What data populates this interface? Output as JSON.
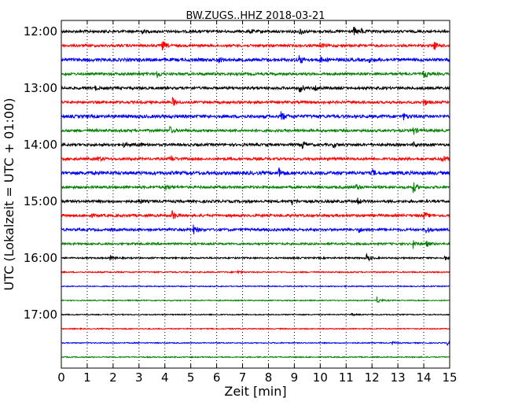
{
  "chart_data": {
    "type": "line",
    "title": "BW.ZUGS..HHZ 2018-03-21",
    "xlabel": "Zeit  [min]",
    "ylabel": "UTC (Lokalzeit = UTC + 01:00)",
    "xlim": [
      0,
      15
    ],
    "x_ticks": [
      "0",
      "1",
      "2",
      "3",
      "4",
      "5",
      "6",
      "7",
      "8",
      "9",
      "10",
      "11",
      "12",
      "13",
      "14",
      "15"
    ],
    "y_tick_labels": [
      "12:00",
      "13:00",
      "14:00",
      "15:00",
      "16:00",
      "17:00"
    ],
    "grid": "vertical dotted lines at each minute",
    "colors": [
      "#000000",
      "#ff0000",
      "#0000ff",
      "#008000"
    ],
    "series": [
      {
        "start": "12:00",
        "color": "#000000",
        "amplitude": 1.0,
        "events": [
          [
            3.1,
            0.7
          ],
          [
            7.3,
            0.6
          ],
          [
            9.2,
            1.6
          ],
          [
            11.3,
            1.5
          ],
          [
            11.6,
            0.7
          ]
        ]
      },
      {
        "start": "12:15",
        "color": "#ff0000",
        "amplitude": 1.0,
        "events": [
          [
            3.9,
            1.8
          ],
          [
            10.0,
            1.0
          ],
          [
            14.4,
            1.3
          ]
        ]
      },
      {
        "start": "12:30",
        "color": "#0000ff",
        "amplitude": 1.2,
        "events": [
          [
            6.1,
            0.8
          ],
          [
            9.2,
            1.6
          ],
          [
            10.0,
            1.0
          ],
          [
            11.9,
            0.7
          ]
        ]
      },
      {
        "start": "12:45",
        "color": "#008000",
        "amplitude": 1.0,
        "events": [
          [
            3.7,
            1.2
          ],
          [
            14.0,
            1.5
          ]
        ]
      },
      {
        "start": "13:00",
        "color": "#000000",
        "amplitude": 1.0,
        "events": [
          [
            1.3,
            0.7
          ],
          [
            9.2,
            1.5
          ],
          [
            9.8,
            1.3
          ]
        ]
      },
      {
        "start": "13:15",
        "color": "#ff0000",
        "amplitude": 1.0,
        "events": [
          [
            4.3,
            1.6
          ],
          [
            14.0,
            1.3
          ]
        ]
      },
      {
        "start": "13:30",
        "color": "#0000ff",
        "amplitude": 1.2,
        "events": [
          [
            8.5,
            1.8
          ],
          [
            13.2,
            1.2
          ]
        ]
      },
      {
        "start": "13:45",
        "color": "#008000",
        "amplitude": 1.0,
        "events": [
          [
            4.2,
            1.2
          ],
          [
            13.6,
            1.4
          ]
        ]
      },
      {
        "start": "14:00",
        "color": "#000000",
        "amplitude": 1.0,
        "events": [
          [
            2.4,
            0.7
          ],
          [
            3.0,
            0.7
          ],
          [
            9.3,
            1.6
          ],
          [
            10.5,
            0.8
          ],
          [
            13.6,
            0.8
          ]
        ]
      },
      {
        "start": "14:15",
        "color": "#ff0000",
        "amplitude": 1.0,
        "events": [
          [
            1.4,
            0.8
          ],
          [
            4.2,
            1.5
          ],
          [
            14.7,
            1.6
          ]
        ]
      },
      {
        "start": "14:30",
        "color": "#0000ff",
        "amplitude": 1.3,
        "events": [
          [
            8.4,
            1.8
          ],
          [
            12.0,
            1.1
          ]
        ]
      },
      {
        "start": "14:45",
        "color": "#008000",
        "amplitude": 1.0,
        "events": [
          [
            4.0,
            1.3
          ],
          [
            11.4,
            1.0
          ],
          [
            13.6,
            1.8
          ]
        ]
      },
      {
        "start": "15:00",
        "color": "#000000",
        "amplitude": 1.0,
        "events": [
          [
            3.0,
            0.8
          ],
          [
            8.9,
            1.1
          ],
          [
            11.4,
            1.5
          ]
        ]
      },
      {
        "start": "15:15",
        "color": "#ff0000",
        "amplitude": 1.0,
        "events": [
          [
            1.1,
            0.7
          ],
          [
            4.3,
            1.8
          ],
          [
            14.0,
            1.3
          ]
        ]
      },
      {
        "start": "15:30",
        "color": "#0000ff",
        "amplitude": 1.0,
        "events": [
          [
            5.1,
            1.6
          ],
          [
            11.5,
            0.9
          ],
          [
            14.1,
            1.3
          ]
        ]
      },
      {
        "start": "15:45",
        "color": "#008000",
        "amplitude": 0.8,
        "events": [
          [
            13.6,
            1.5
          ],
          [
            14.1,
            1.0
          ]
        ]
      },
      {
        "start": "16:00",
        "color": "#000000",
        "amplitude": 0.6,
        "events": [
          [
            1.9,
            0.8
          ],
          [
            11.8,
            1.4
          ],
          [
            14.8,
            0.9
          ]
        ]
      },
      {
        "start": "16:15",
        "color": "#ff0000",
        "amplitude": 0.5,
        "events": [
          [
            6.8,
            0.6
          ]
        ]
      },
      {
        "start": "16:30",
        "color": "#0000ff",
        "amplitude": 0.4,
        "events": []
      },
      {
        "start": "16:45",
        "color": "#008000",
        "amplitude": 0.4,
        "events": [
          [
            12.2,
            1.3
          ]
        ]
      },
      {
        "start": "17:00",
        "color": "#000000",
        "amplitude": 0.4,
        "events": [
          [
            11.2,
            0.5
          ]
        ]
      },
      {
        "start": "17:15",
        "color": "#ff0000",
        "amplitude": 0.4,
        "events": []
      },
      {
        "start": "17:30",
        "color": "#0000ff",
        "amplitude": 0.4,
        "events": [
          [
            12.8,
            0.6
          ],
          [
            14.9,
            0.7
          ]
        ]
      },
      {
        "start": "17:45",
        "color": "#008000",
        "amplitude": 0.4,
        "events": []
      }
    ]
  }
}
